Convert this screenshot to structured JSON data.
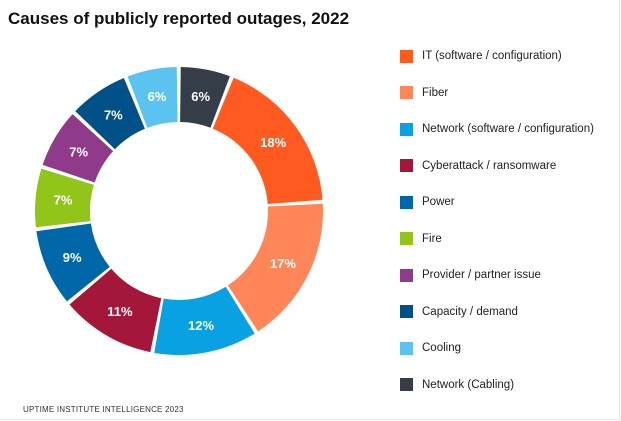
{
  "chart_data": {
    "type": "pie",
    "title": "Causes of publicly reported outages, 2022",
    "source": "UPTIME INSTITUTE INTELLIGENCE 2023",
    "legend_position": "right",
    "slices": [
      {
        "label": "IT (software / configuration)",
        "value": 18,
        "display": "18%",
        "color": "#ff5a1f"
      },
      {
        "label": "Fiber",
        "value": 17,
        "display": "17%",
        "color": "#ff8659"
      },
      {
        "label": "Network (software / configuration)",
        "value": 12,
        "display": "12%",
        "color": "#0aa1e2"
      },
      {
        "label": "Cyberattack / ransomware",
        "value": 11,
        "display": "11%",
        "color": "#a4173a"
      },
      {
        "label": "Power",
        "value": 9,
        "display": "9%",
        "color": "#0068a8"
      },
      {
        "label": "Fire",
        "value": 7,
        "display": "7%",
        "color": "#91c519"
      },
      {
        "label": "Provider / partner issue",
        "value": 7,
        "display": "7%",
        "color": "#8f3a8a"
      },
      {
        "label": "Capacity / demand",
        "value": 7,
        "display": "7%",
        "color": "#005188"
      },
      {
        "label": "Cooling",
        "value": 6,
        "display": "6%",
        "color": "#5ac3ef"
      },
      {
        "label": "Network (Cabling)",
        "value": 6,
        "display": "6%",
        "color": "#353d48"
      }
    ]
  }
}
